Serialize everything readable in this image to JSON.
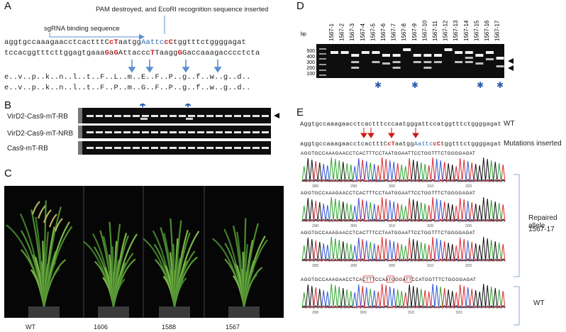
{
  "panels": {
    "A": {
      "letter": "A",
      "pam_note": "PAM destroyed, and EcoRI recognition sequence inserted",
      "sgrna_label": "sgRNA binding sequence",
      "seq_top_parts": [
        "aggtgccaaagaacctcactttC",
        "cT",
        "aatgg",
        "Aattc",
        "cC",
        "tggtttctggggagat"
      ],
      "seq_bottom_parts": [
        "tccacggtttcttggagtgaaa",
        "G",
        "a",
        "G",
        "Attaccc",
        "T",
        "Taagg",
        "G",
        "Gaccaaagacccctcta"
      ],
      "aa_row1": "e..v..p..k..n..l..t..F..L..m..E..F..P..g..f..w..g..d..",
      "aa_row2": "e..v..p..k..n..l..t..F..P..m..G..F..P..g..f..w..g..d.."
    },
    "B": {
      "letter": "B",
      "rows": [
        "VirD2-Cas9-mT-RB",
        "VirD2-Cas9-mT-NRB",
        "Cas9-mT-RB"
      ]
    },
    "C": {
      "letter": "C",
      "plants": [
        "WT",
        "1606",
        "1588",
        "1567"
      ]
    },
    "D": {
      "letter": "D",
      "bp_label": "bp",
      "ladder": [
        "500",
        "400",
        "300",
        "200",
        "100"
      ],
      "lanes": [
        "1567-1",
        "1567-2",
        "1567-3",
        "1567-4",
        "1567-5",
        "1567-6",
        "1567-7",
        "1567-8",
        "1567-9",
        "1567-10",
        "1567-11",
        "1567-12",
        "1567-13",
        "1567-14",
        "1567-15",
        "1567-16",
        "1567-17"
      ]
    },
    "E": {
      "letter": "E",
      "wt_seq": "Aggtgccaaagaacctcactttcccaatgggattccatggtttctggggagat",
      "wt_label": "WT",
      "mut_seq_parts": [
        "aggtgccaaagaacctcactttC",
        "cT",
        "aatgg",
        "Aattc",
        "cC",
        "tggtttctggggagat"
      ],
      "mut_label": "Mutations inserted",
      "trace_seq": "AGGTGCCAAAGAACCTCACTTTCCTAATGGAATTCCTGGTTTCTGGGGAGAT",
      "trace_seq_wt": "AGGTGCCAAAGAACCTCACTTTCCAATGGGATTCCATGGTTTCTGGGGAGAT",
      "repaired_label_1": "Repaired allele",
      "repaired_label_2": "1567-17",
      "wt_bottom_label": "WT",
      "axis_sets": [
        [
          "280",
          "290",
          "300",
          "310",
          "320"
        ],
        [
          "290",
          "300",
          "310",
          "320",
          "330"
        ],
        [
          "280",
          "290",
          "300",
          "310",
          "320"
        ],
        [
          "290",
          "300",
          "310",
          "320"
        ]
      ]
    }
  },
  "colors": {
    "red": "#d01919",
    "blue": "#2b6cb0",
    "arrow_blue": "#5b8fd1",
    "asterisk": "#2a5db0"
  }
}
